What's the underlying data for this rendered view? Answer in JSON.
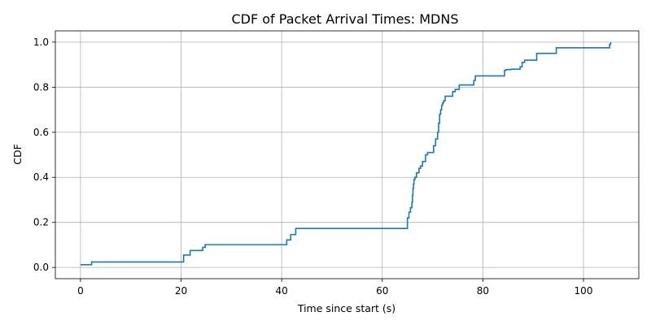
{
  "chart_data": {
    "type": "line",
    "title": "CDF of Packet Arrival Times: MDNS",
    "xlabel": "Time since start (s)",
    "ylabel": "CDF",
    "xlim": [
      -5,
      111
    ],
    "ylim": [
      -0.05,
      1.05
    ],
    "xticks": [
      0,
      20,
      40,
      60,
      80,
      100
    ],
    "yticks": [
      0.0,
      0.2,
      0.4,
      0.6,
      0.8,
      1.0
    ],
    "xtick_labels": [
      "0",
      "20",
      "40",
      "60",
      "80",
      "100"
    ],
    "ytick_labels": [
      "0.0",
      "0.2",
      "0.4",
      "0.6",
      "0.8",
      "1.0"
    ],
    "grid": true,
    "step": "post",
    "line_color": "#1f77b4",
    "series": [
      {
        "x": [
          0.0,
          2.2,
          20.3,
          20.5,
          21.2,
          21.8,
          24.3,
          24.8,
          41.0,
          41.8,
          42.8,
          65.0,
          65.3,
          65.6,
          65.9,
          66.0,
          66.1,
          66.2,
          66.3,
          66.5,
          66.8,
          67.3,
          67.6,
          68.0,
          68.6,
          69.0,
          70.2,
          70.6,
          71.0,
          71.2,
          71.4,
          71.6,
          71.8,
          72.0,
          72.2,
          72.5,
          73.0,
          74.0,
          74.5,
          75.3,
          78.2,
          78.5,
          84.3,
          84.6,
          85.6,
          87.4,
          87.8,
          88.3,
          90.7,
          94.6,
          105.2,
          105.4
        ],
        "y": [
          0.012,
          0.024,
          0.024,
          0.055,
          0.055,
          0.075,
          0.089,
          0.101,
          0.122,
          0.146,
          0.173,
          0.22,
          0.245,
          0.265,
          0.29,
          0.32,
          0.35,
          0.37,
          0.39,
          0.4,
          0.42,
          0.44,
          0.45,
          0.47,
          0.5,
          0.51,
          0.54,
          0.57,
          0.6,
          0.64,
          0.68,
          0.7,
          0.72,
          0.73,
          0.74,
          0.76,
          0.76,
          0.78,
          0.79,
          0.81,
          0.83,
          0.85,
          0.875,
          0.878,
          0.88,
          0.89,
          0.91,
          0.92,
          0.95,
          0.975,
          0.99,
          1.0
        ]
      }
    ]
  }
}
